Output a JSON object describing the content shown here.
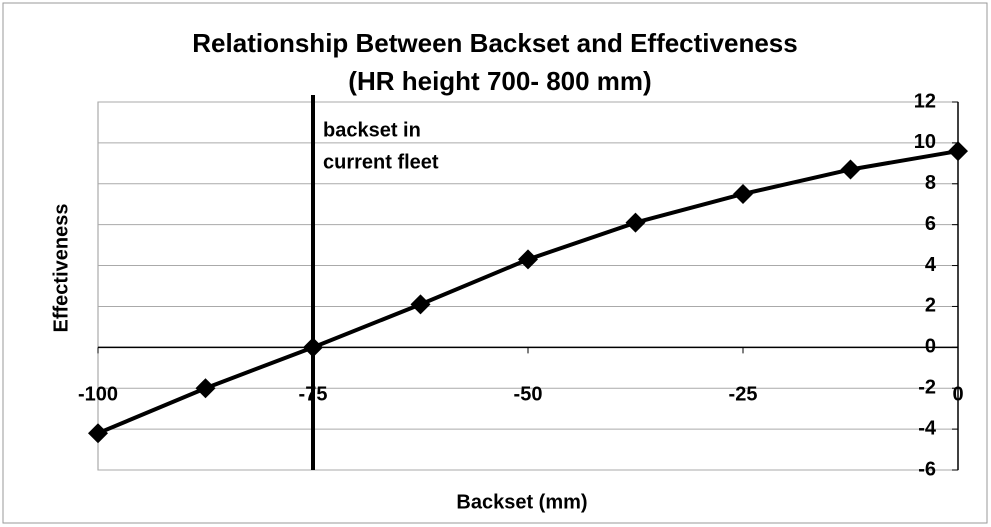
{
  "chart_data": {
    "type": "line",
    "title": [
      "Relationship Between Backset and Effectiveness",
      "(HR height 700- 800 mm)"
    ],
    "xlabel": "Backset (mm)",
    "ylabel": "Effectiveness",
    "x": [
      -100,
      -87.5,
      -75,
      -62.5,
      -50,
      -37.5,
      -25,
      -12.5,
      0
    ],
    "series": [
      {
        "name": null,
        "color": "#000000",
        "values": [
          -4.2,
          -2.0,
          0,
          2.1,
          4.3,
          6.1,
          7.5,
          8.7,
          9.6
        ]
      }
    ],
    "xlim": [
      -100,
      0
    ],
    "xticks": [
      -100,
      -75,
      -50,
      -25,
      0
    ],
    "ylim": [
      -6,
      12
    ],
    "yticks": [
      -6,
      -4,
      -2,
      0,
      2,
      4,
      6,
      8,
      10,
      12
    ],
    "grid": true,
    "vertical_line": {
      "x": -75,
      "label": [
        "backset in",
        "current fleet"
      ]
    }
  }
}
